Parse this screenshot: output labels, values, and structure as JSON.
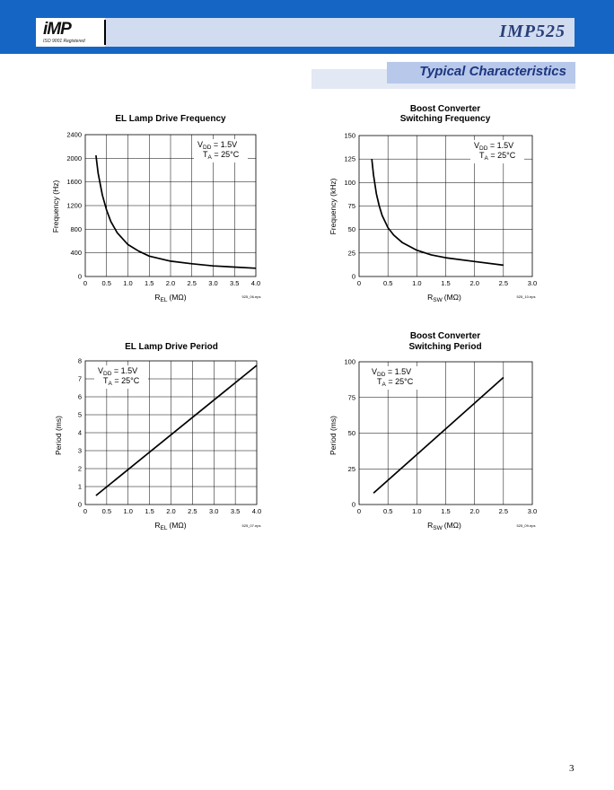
{
  "header": {
    "logo_text": "iMP",
    "logo_tagline": "ISO 9001 Registered",
    "doc_title": "IMP525",
    "section_title": "Typical Characteristics"
  },
  "colors": {
    "brand_blue": "#1566c4",
    "header_panel": "#d2dcf0",
    "section_tab": "#b7c8ea",
    "section_shadow": "#e2e8f4",
    "section_text": "#1d3680",
    "grid": "#000000",
    "curve": "#000000"
  },
  "charts": [
    {
      "title": "EL Lamp Drive Frequency",
      "xlabel": "R",
      "xlabel_sub": "EL",
      "xlabel_unit": "(MΩ)",
      "ylabel": "Frequency (Hz)",
      "xticks": [
        "0",
        "0.5",
        "1.0",
        "1.5",
        "2.0",
        "2.5",
        "3.0",
        "3.5",
        "4.0"
      ],
      "yticks": [
        "0",
        "400",
        "800",
        "1200",
        "1600",
        "2000",
        "2400"
      ],
      "annotation_line1": "V",
      "annotation_line1_sub": "DD",
      "annotation_line1_val": " = 1.5V",
      "annotation_line2": "T",
      "annotation_line2_sub": "A",
      "annotation_line2_val": " = 25°C",
      "filename": "525_06.eps"
    },
    {
      "title": "Boost Converter",
      "title2": "Switching Frequency",
      "xlabel": "R",
      "xlabel_sub": "SW",
      "xlabel_unit": "(MΩ)",
      "ylabel": "Frequency (kHz)",
      "xticks": [
        "0",
        "0.5",
        "1.0",
        "1.5",
        "2.0",
        "2.5",
        "3.0"
      ],
      "yticks": [
        "0",
        "25",
        "50",
        "75",
        "100",
        "125",
        "150"
      ],
      "annotation_line1": "V",
      "annotation_line1_sub": "DD",
      "annotation_line1_val": " = 1.5V",
      "annotation_line2": "T",
      "annotation_line2_sub": "A",
      "annotation_line2_val": " = 25°C",
      "filename": "525_10.eps"
    },
    {
      "title": "EL Lamp Drive Period",
      "xlabel": "R",
      "xlabel_sub": "EL",
      "xlabel_unit": "(MΩ)",
      "ylabel": "Period (ms)",
      "xticks": [
        "0",
        "0.5",
        "1.0",
        "1.5",
        "2.0",
        "2.5",
        "3.0",
        "3.5",
        "4.0"
      ],
      "yticks": [
        "0",
        "1",
        "2",
        "3",
        "4",
        "5",
        "6",
        "7",
        "8"
      ],
      "annotation_line1": "V",
      "annotation_line1_sub": "DD",
      "annotation_line1_val": " = 1.5V",
      "annotation_line2": "T",
      "annotation_line2_sub": "A",
      "annotation_line2_val": " = 25°C",
      "filename": "525_07.eps"
    },
    {
      "title": "Boost Converter",
      "title2": "Switching Period",
      "xlabel": "R",
      "xlabel_sub": "SW",
      "xlabel_unit": "(MΩ)",
      "ylabel": "Period (ms)",
      "xticks": [
        "0",
        "0.5",
        "1.0",
        "1.5",
        "2.0",
        "2.5",
        "3.0"
      ],
      "yticks": [
        "0",
        "25",
        "50",
        "75",
        "100"
      ],
      "annotation_line1": "V",
      "annotation_line1_sub": "DD",
      "annotation_line1_val": " = 1.5V",
      "annotation_line2": "T",
      "annotation_line2_sub": "A",
      "annotation_line2_val": " = 25°C",
      "filename": "525_09.eps"
    }
  ],
  "chart_data": [
    {
      "type": "line",
      "title": "EL Lamp Drive Frequency",
      "xlabel": "REL (MΩ)",
      "ylabel": "Frequency (Hz)",
      "xlim": [
        0,
        4.0
      ],
      "ylim": [
        0,
        2400
      ],
      "grid": true,
      "series": [
        {
          "x": [
            0.25,
            0.3,
            0.4,
            0.5,
            0.6,
            0.75,
            1.0,
            1.25,
            1.5,
            2.0,
            2.5,
            3.0,
            3.5,
            4.0
          ],
          "y": [
            2050,
            1750,
            1380,
            1120,
            930,
            740,
            540,
            430,
            345,
            260,
            215,
            180,
            160,
            140
          ]
        }
      ]
    },
    {
      "type": "line",
      "title": "Boost Converter Switching Frequency",
      "xlabel": "RSW (MΩ)",
      "ylabel": "Frequency (kHz)",
      "xlim": [
        0,
        3.0
      ],
      "ylim": [
        0,
        150
      ],
      "grid": true,
      "series": [
        {
          "x": [
            0.22,
            0.25,
            0.3,
            0.35,
            0.4,
            0.5,
            0.6,
            0.75,
            1.0,
            1.25,
            1.5,
            2.0,
            2.5
          ],
          "y": [
            125,
            108,
            88,
            75,
            65,
            52,
            44,
            36,
            28,
            23,
            20,
            16,
            12
          ]
        }
      ]
    },
    {
      "type": "line",
      "title": "EL Lamp Drive Period",
      "xlabel": "REL (MΩ)",
      "ylabel": "Period (ms)",
      "xlim": [
        0,
        4.0
      ],
      "ylim": [
        0,
        8
      ],
      "grid": true,
      "series": [
        {
          "x": [
            0.25,
            4.0
          ],
          "y": [
            0.5,
            7.75
          ]
        }
      ]
    },
    {
      "type": "line",
      "title": "Boost Converter Switching Period",
      "xlabel": "RSW (MΩ)",
      "ylabel": "Period (ms)",
      "xlim": [
        0,
        3.0
      ],
      "ylim": [
        0,
        100
      ],
      "grid": true,
      "series": [
        {
          "x": [
            0.25,
            2.5
          ],
          "y": [
            8,
            89
          ]
        }
      ]
    }
  ],
  "page_number": "3"
}
